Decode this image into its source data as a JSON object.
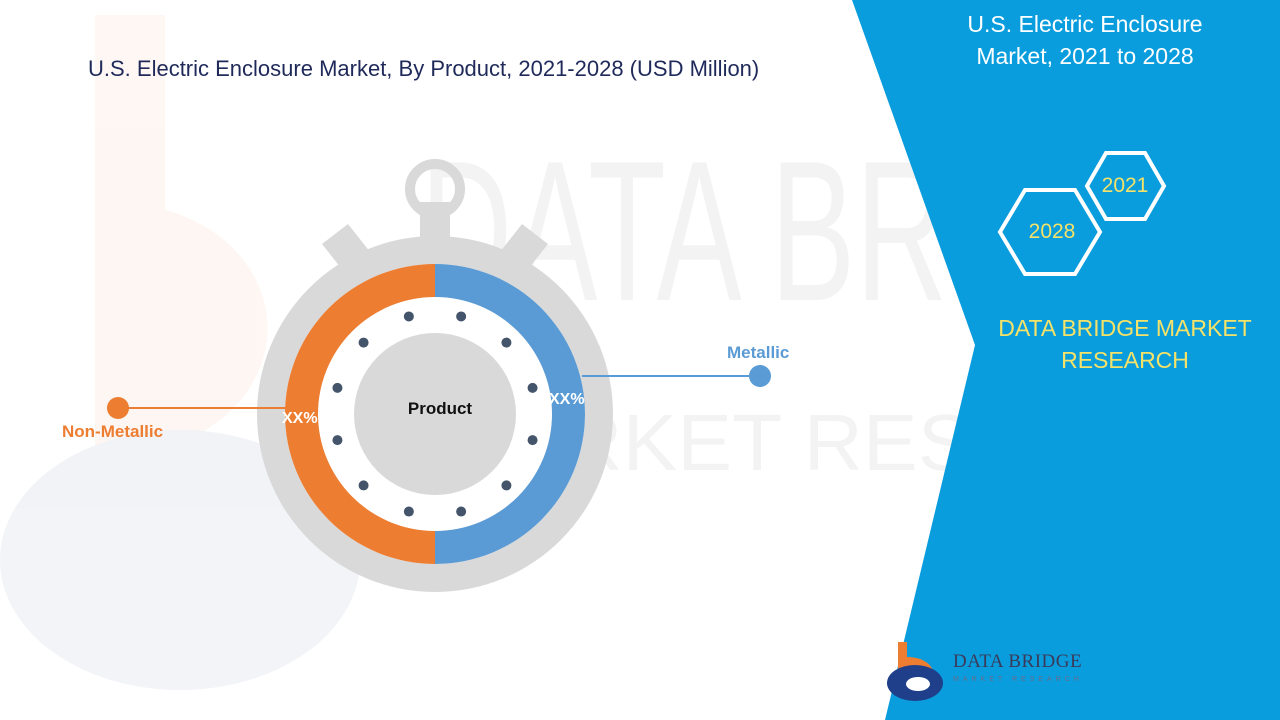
{
  "title": "U.S. Electric Enclosure Market, By Product, 2021-2028 (USD Million)",
  "side_title": "U.S. Electric Enclosure Market,  2021 to 2028",
  "years": {
    "start": "2021",
    "end": "2028"
  },
  "brand": "DATA BRIDGE MARKET RESEARCH",
  "logo": {
    "name": "DATA BRIDGE",
    "sub": "MARKET RESEARCH"
  },
  "watermark": {
    "main": "DATA BRIDGE",
    "sub": "MARKET RESEARCH"
  },
  "colors": {
    "panel": "#0a9ddd",
    "metallic": "#5b9bd5",
    "non_metallic": "#ed7d31",
    "ring_gray": "#d9d9d9",
    "years_text": "#f5e268"
  },
  "chart_data": {
    "type": "pie",
    "center_label": "Product",
    "segments": [
      {
        "name": "Metallic",
        "label": "XX%",
        "share": 0.5,
        "color": "#5b9bd5"
      },
      {
        "name": "Non-Metallic",
        "label": "XX%",
        "share": 0.5,
        "color": "#ed7d31"
      }
    ]
  }
}
